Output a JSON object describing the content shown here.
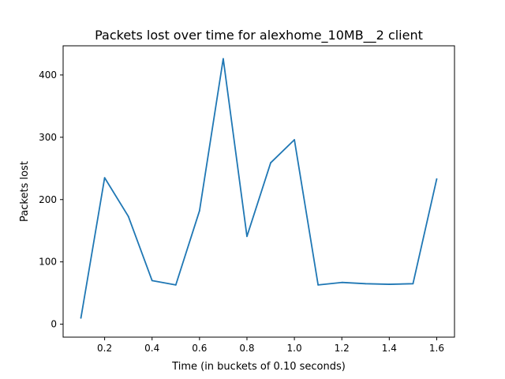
{
  "chart_data": {
    "type": "line",
    "title": "Packets lost over time for alexhome_10MB__2 client",
    "xlabel": "Time (in buckets of 0.10 seconds)",
    "ylabel": "Packets lost",
    "xlim": [
      0.025,
      1.675
    ],
    "ylim": [
      -20.8,
      446.8
    ],
    "xticks": [
      0.2,
      0.4,
      0.6,
      0.8,
      1.0,
      1.2,
      1.4,
      1.6
    ],
    "xtick_labels": [
      "0.2",
      "0.4",
      "0.6",
      "0.8",
      "1.0",
      "1.2",
      "1.4",
      "1.6"
    ],
    "yticks": [
      0,
      100,
      200,
      300,
      400
    ],
    "ytick_labels": [
      "0",
      "100",
      "200",
      "300",
      "400"
    ],
    "grid": false,
    "line_color": "#1f77b4",
    "series": [
      {
        "x": [
          0.1,
          0.2,
          0.3,
          0.4,
          0.5,
          0.6,
          0.7,
          0.8,
          0.9,
          1.0,
          1.1,
          1.2,
          1.3,
          1.4,
          1.5,
          1.6
        ],
        "values": [
          10,
          235,
          173,
          70,
          63,
          182,
          426,
          141,
          259,
          296,
          63,
          67,
          65,
          64,
          65,
          233
        ]
      }
    ]
  }
}
